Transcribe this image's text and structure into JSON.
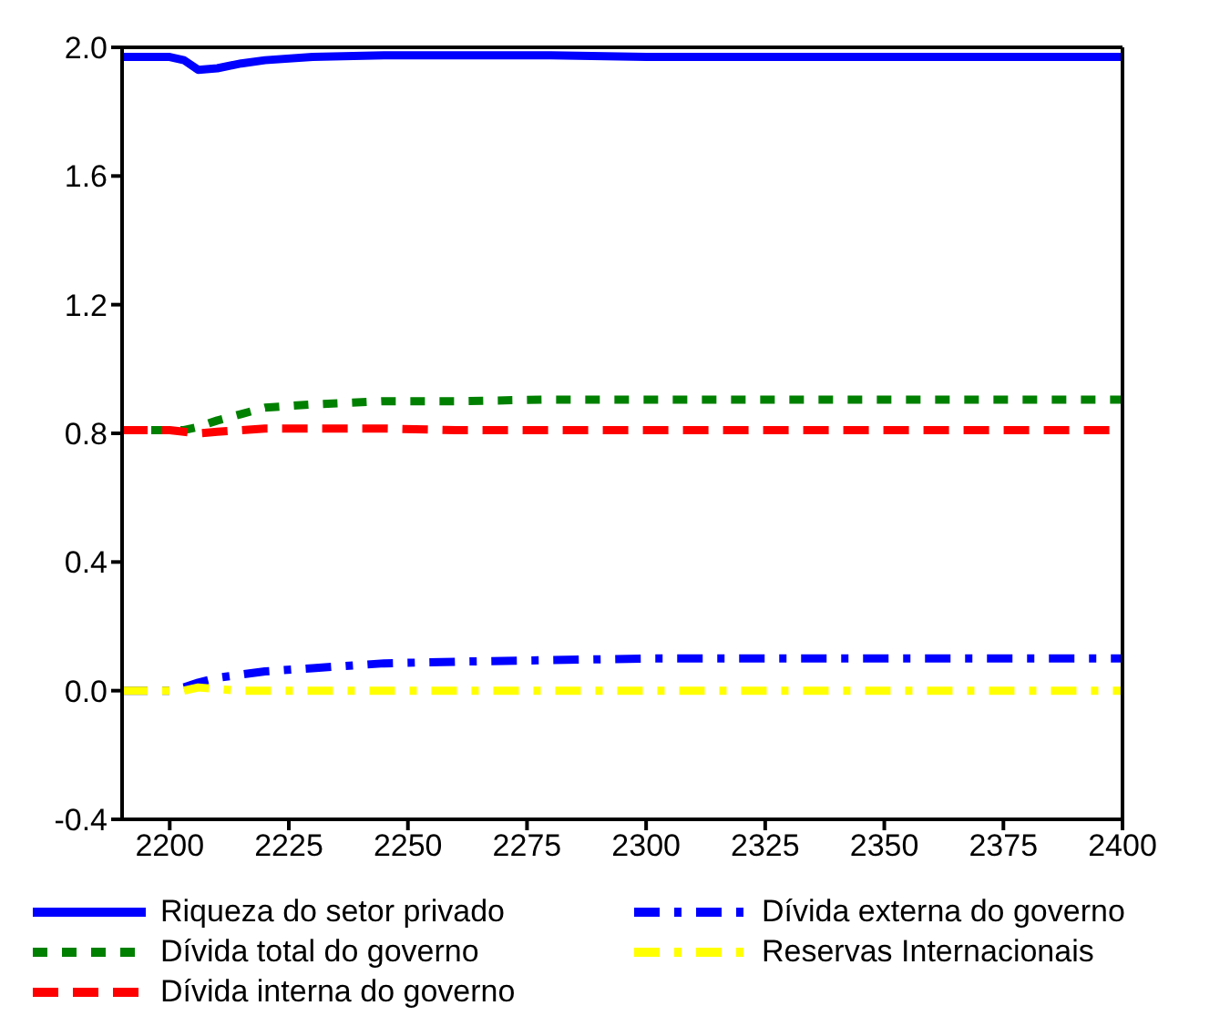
{
  "chart_data": {
    "type": "line",
    "xlim": [
      2190,
      2400
    ],
    "xticks": [
      2200,
      2225,
      2250,
      2275,
      2300,
      2325,
      2350,
      2375,
      2400
    ],
    "ylim": [
      -0.4,
      2.0
    ],
    "yticks": [
      {
        "value": -0.4,
        "label": "-0.4"
      },
      {
        "value": 0,
        "label": "0.0"
      },
      {
        "value": 0.4,
        "label": "0.4"
      },
      {
        "value": 0.8,
        "label": "0.8"
      },
      {
        "value": 1.2,
        "label": "1.2"
      },
      {
        "value": 1.6,
        "label": "1.6"
      },
      {
        "value": 2.0,
        "label": "2.0"
      }
    ],
    "legend": "bottom",
    "marker": "none",
    "x": [
      2190,
      2195,
      2200,
      2203,
      2206,
      2210,
      2215,
      2220,
      2230,
      2245,
      2260,
      2280,
      2300,
      2340,
      2400
    ],
    "series": [
      {
        "name": "Riqueza do setor privado",
        "color": "#0000ff",
        "line_style": "solid",
        "values": [
          1.97,
          1.97,
          1.97,
          1.96,
          1.93,
          1.935,
          1.95,
          1.96,
          1.97,
          1.975,
          1.975,
          1.975,
          1.97,
          1.97,
          1.97
        ]
      },
      {
        "name": "Dívida total do governo",
        "color": "#008000",
        "line_style": "dotted",
        "values": [
          0.81,
          0.81,
          0.81,
          0.81,
          0.82,
          0.84,
          0.86,
          0.88,
          0.89,
          0.9,
          0.9,
          0.905,
          0.905,
          0.905,
          0.905
        ]
      },
      {
        "name": "Dívida interna do governo",
        "color": "#ff0000",
        "line_style": "dashed",
        "values": [
          0.81,
          0.81,
          0.81,
          0.805,
          0.8,
          0.805,
          0.81,
          0.815,
          0.815,
          0.815,
          0.81,
          0.81,
          0.81,
          0.81,
          0.81
        ]
      },
      {
        "name": "Dívida externa do governo",
        "color": "#0000ff",
        "line_style": "dashdot",
        "values": [
          0,
          0,
          0,
          0.01,
          0.025,
          0.04,
          0.05,
          0.06,
          0.07,
          0.085,
          0.09,
          0.095,
          0.1,
          0.1,
          0.1
        ]
      },
      {
        "name": "Reservas Internacionais",
        "color": "#ffff00",
        "line_style": "dashdot",
        "values": [
          0,
          0,
          0,
          0,
          0.01,
          0.005,
          0,
          0,
          0,
          0,
          0,
          0,
          0,
          0,
          0
        ]
      }
    ]
  }
}
